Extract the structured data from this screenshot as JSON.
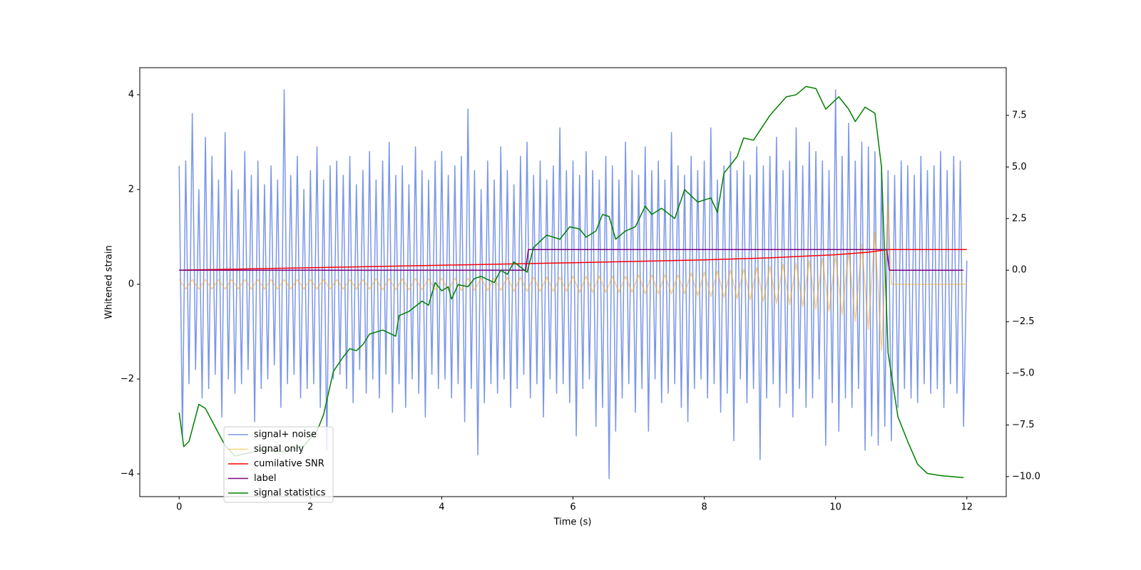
{
  "chart_data": {
    "type": "line",
    "xlabel": "Time (s)",
    "ylabel": "Whitened strain",
    "xlim": [
      -0.6,
      12.6
    ],
    "xticks": [
      0,
      2,
      4,
      6,
      8,
      10,
      12
    ],
    "ylim": [
      -4.48,
      4.57
    ],
    "yticks": [
      {
        "value": -4,
        "label": "−4"
      },
      {
        "value": -2,
        "label": "−2"
      },
      0,
      2,
      4
    ],
    "y2lim": [
      -10.97,
      9.81
    ],
    "y2ticks": [
      {
        "value": -10,
        "label": "−10.0"
      },
      {
        "value": -7.5,
        "label": "−7.5"
      },
      {
        "value": -5,
        "label": "−5.0"
      },
      {
        "value": -2.5,
        "label": "−2.5"
      },
      {
        "value": 0,
        "label": "0.0"
      },
      {
        "value": 2.5,
        "label": "2.5"
      },
      {
        "value": 5,
        "label": "5.0"
      },
      {
        "value": 7.5,
        "label": "7.5"
      }
    ],
    "legend": "lower left",
    "series": [
      {
        "name": "signal+ noise",
        "color": "#4169e1",
        "alpha": 0.7,
        "x": [
          0,
          0.05,
          0.1,
          0.15,
          0.2,
          0.25,
          0.3,
          0.35,
          0.4,
          0.45,
          0.5,
          0.55,
          0.6,
          0.65,
          0.7,
          0.75,
          0.8,
          0.85,
          0.9,
          0.95,
          1,
          1.05,
          1.1,
          1.15,
          1.2,
          1.25,
          1.3,
          1.35,
          1.4,
          1.45,
          1.5,
          1.55,
          1.6,
          1.65,
          1.7,
          1.75,
          1.8,
          1.85,
          1.9,
          1.95,
          2,
          2.05,
          2.1,
          2.15,
          2.2,
          2.25,
          2.3,
          2.35,
          2.4,
          2.45,
          2.5,
          2.55,
          2.6,
          2.65,
          2.7,
          2.75,
          2.8,
          2.85,
          2.9,
          2.95,
          3,
          3.05,
          3.1,
          3.15,
          3.2,
          3.25,
          3.3,
          3.35,
          3.4,
          3.45,
          3.5,
          3.55,
          3.6,
          3.65,
          3.7,
          3.75,
          3.8,
          3.85,
          3.9,
          3.95,
          4,
          4.05,
          4.1,
          4.15,
          4.2,
          4.25,
          4.3,
          4.35,
          4.4,
          4.45,
          4.5,
          4.55,
          4.6,
          4.65,
          4.7,
          4.75,
          4.8,
          4.85,
          4.9,
          4.95,
          5,
          5.05,
          5.1,
          5.15,
          5.2,
          5.25,
          5.3,
          5.35,
          5.4,
          5.45,
          5.5,
          5.55,
          5.6,
          5.65,
          5.7,
          5.75,
          5.8,
          5.85,
          5.9,
          5.95,
          6,
          6.05,
          6.1,
          6.15,
          6.2,
          6.25,
          6.3,
          6.35,
          6.4,
          6.45,
          6.5,
          6.55,
          6.6,
          6.65,
          6.7,
          6.75,
          6.8,
          6.85,
          6.9,
          6.95,
          7,
          7.05,
          7.1,
          7.15,
          7.2,
          7.25,
          7.3,
          7.35,
          7.4,
          7.45,
          7.5,
          7.55,
          7.6,
          7.65,
          7.7,
          7.75,
          7.8,
          7.85,
          7.9,
          7.95,
          8,
          8.05,
          8.1,
          8.15,
          8.2,
          8.25,
          8.3,
          8.35,
          8.4,
          8.45,
          8.5,
          8.55,
          8.6,
          8.65,
          8.7,
          8.75,
          8.8,
          8.85,
          8.9,
          8.95,
          9,
          9.05,
          9.1,
          9.15,
          9.2,
          9.25,
          9.3,
          9.35,
          9.4,
          9.45,
          9.5,
          9.55,
          9.6,
          9.65,
          9.7,
          9.75,
          9.8,
          9.85,
          9.9,
          9.95,
          10,
          10.05,
          10.1,
          10.15,
          10.2,
          10.25,
          10.3,
          10.35,
          10.4,
          10.45,
          10.5,
          10.55,
          10.6,
          10.65,
          10.7,
          10.75,
          10.8,
          10.85,
          10.9,
          10.95,
          11,
          11.05,
          11.1,
          11.15,
          11.2,
          11.25,
          11.3,
          11.35,
          11.4,
          11.45,
          11.5,
          11.55,
          11.6,
          11.65,
          11.7,
          11.75,
          11.8,
          11.85,
          11.9,
          11.95,
          12
        ],
        "values": [
          2.5,
          -3.2,
          2.6,
          -2.1,
          3.6,
          -1.8,
          2.0,
          -2.4,
          3.1,
          -2.2,
          2.7,
          -1.9,
          2.2,
          -2.8,
          3.2,
          -2.0,
          2.4,
          -2.3,
          2.0,
          -2.1,
          2.8,
          -1.8,
          2.3,
          -2.9,
          2.6,
          -2.2,
          2.1,
          -2.0,
          2.5,
          -1.7,
          2.2,
          -2.6,
          4.1,
          -2.1,
          2.3,
          -1.9,
          2.7,
          -2.4,
          2.0,
          -2.2,
          2.4,
          -2.1,
          2.9,
          -2.6,
          2.2,
          -3.5,
          2.5,
          -2.0,
          2.6,
          -1.9,
          2.3,
          -2.2,
          2.7,
          -2.5,
          2.1,
          -1.8,
          2.4,
          -2.3,
          2.8,
          -2.0,
          2.2,
          -2.4,
          2.6,
          -1.9,
          3.0,
          -2.7,
          2.3,
          -2.1,
          2.5,
          -2.6,
          2.1,
          -2.0,
          2.9,
          -2.3,
          2.4,
          -2.8,
          2.2,
          -1.9,
          2.6,
          -2.2,
          2.8,
          -2.0,
          2.3,
          -2.4,
          2.5,
          -2.1,
          2.7,
          -2.9,
          3.7,
          -2.2,
          2.4,
          -3.6,
          2.0,
          -2.5,
          2.6,
          -2.1,
          2.2,
          -2.3,
          2.9,
          -2.0,
          2.4,
          -2.6,
          2.1,
          -2.2,
          2.7,
          -1.9,
          3.0,
          -2.4,
          2.3,
          -2.1,
          2.6,
          -2.8,
          2.2,
          -2.0,
          2.5,
          -2.3,
          3.3,
          -2.1,
          2.4,
          -2.5,
          2.6,
          -3.2,
          2.3,
          -2.2,
          2.8,
          -2.0,
          2.4,
          -3.0,
          2.2,
          -2.6,
          2.7,
          -4.1,
          2.5,
          -3.1,
          2.2,
          -2.4,
          3.0,
          -2.1,
          2.4,
          -2.7,
          2.3,
          -2.2,
          2.9,
          -3.1,
          2.4,
          -2.0,
          2.6,
          -2.5,
          2.2,
          -2.3,
          3.2,
          -2.1,
          2.5,
          -2.6,
          2.3,
          -2.9,
          2.7,
          -2.2,
          2.4,
          -2.0,
          2.6,
          -2.4,
          3.3,
          -2.1,
          2.2,
          -2.7,
          2.5,
          -2.3,
          2.8,
          -3.3,
          2.4,
          -2.0,
          2.6,
          -2.5,
          2.3,
          -2.2,
          2.9,
          -3.7,
          2.5,
          -2.4,
          2.7,
          -2.1,
          3.1,
          -2.6,
          2.4,
          -2.3,
          2.6,
          -2.8,
          3.3,
          -2.2,
          2.5,
          -2.6,
          3.0,
          -2.4,
          2.8,
          -2.0,
          2.6,
          -3.4,
          2.4,
          -2.5,
          4.1,
          -3.1,
          2.7,
          -2.4,
          3.4,
          -2.6,
          2.6,
          -2.2,
          3.0,
          -3.5,
          2.9,
          -3.2,
          2.8,
          -3.4,
          2.5,
          -3.0,
          2.4,
          -3.3,
          2.3,
          -2.6,
          2.6,
          -2.2,
          2.5,
          -2.4,
          2.3,
          -2.5,
          2.7,
          -2.1,
          2.4,
          -2.3,
          2.5,
          -2.2,
          2.8,
          -2.6,
          2.4,
          -2.1,
          2.7,
          -2.3,
          2.6,
          -3.0,
          0.5
        ]
      },
      {
        "name": "signal only",
        "color": "#ffa500",
        "alpha": 0.5,
        "x": [
          0,
          0.1,
          0.2,
          0.3,
          0.4,
          0.5,
          0.6,
          0.7,
          0.8,
          0.9,
          1,
          1.1,
          1.2,
          1.3,
          1.4,
          1.5,
          1.6,
          1.7,
          1.8,
          1.9,
          2,
          2.1,
          2.2,
          2.3,
          2.4,
          2.5,
          2.6,
          2.7,
          2.8,
          2.9,
          3,
          3.1,
          3.2,
          3.3,
          3.4,
          3.5,
          3.6,
          3.7,
          3.8,
          3.9,
          4,
          4.1,
          4.2,
          4.3,
          4.4,
          4.5,
          4.6,
          4.7,
          4.8,
          4.9,
          5,
          5.1,
          5.2,
          5.3,
          5.4,
          5.5,
          5.6,
          5.7,
          5.8,
          5.9,
          6,
          6.1,
          6.2,
          6.3,
          6.4,
          6.5,
          6.6,
          6.7,
          6.8,
          6.9,
          7,
          7.1,
          7.2,
          7.3,
          7.4,
          7.5,
          7.6,
          7.7,
          7.8,
          7.9,
          8,
          8.1,
          8.2,
          8.3,
          8.4,
          8.5,
          8.6,
          8.7,
          8.8,
          8.9,
          9,
          9.1,
          9.2,
          9.3,
          9.4,
          9.5,
          9.6,
          9.7,
          9.8,
          9.9,
          10,
          10.1,
          10.2,
          10.3,
          10.4,
          10.5,
          10.6,
          10.7,
          10.8,
          10.85,
          12
        ],
        "values": [
          0.1,
          -0.1,
          0.1,
          -0.1,
          0.1,
          -0.1,
          0.1,
          -0.1,
          0.1,
          -0.1,
          0.1,
          -0.1,
          0.1,
          -0.1,
          0.1,
          -0.1,
          0.1,
          -0.1,
          0.1,
          -0.1,
          0.1,
          -0.1,
          0.1,
          -0.1,
          0.1,
          -0.1,
          0.1,
          -0.1,
          0.1,
          -0.1,
          0.12,
          -0.12,
          0.12,
          -0.12,
          0.12,
          -0.12,
          0.12,
          -0.12,
          0.12,
          -0.12,
          0.13,
          -0.13,
          0.13,
          -0.13,
          0.13,
          -0.13,
          0.13,
          -0.13,
          0.13,
          -0.13,
          0.15,
          -0.15,
          0.15,
          -0.15,
          0.15,
          -0.15,
          0.15,
          -0.15,
          0.15,
          -0.15,
          0.17,
          -0.17,
          0.17,
          -0.17,
          0.17,
          -0.17,
          0.17,
          -0.17,
          0.17,
          -0.17,
          0.2,
          -0.2,
          0.2,
          -0.2,
          0.2,
          -0.2,
          0.2,
          -0.2,
          0.24,
          -0.24,
          0.26,
          -0.26,
          0.28,
          -0.28,
          0.3,
          -0.3,
          0.32,
          -0.33,
          0.35,
          -0.36,
          0.38,
          -0.4,
          0.42,
          -0.43,
          0.45,
          -0.47,
          0.5,
          -0.52,
          0.55,
          -0.57,
          0.6,
          -0.65,
          0.7,
          -0.78,
          0.85,
          -0.95,
          1.1,
          -1.4,
          1.7,
          0,
          0
        ]
      },
      {
        "name": "cumilative SNR",
        "color": "#ff0000",
        "axis": "y2",
        "x": [
          0,
          2,
          4,
          6,
          8,
          9,
          10,
          10.5,
          10.8,
          12
        ],
        "values": [
          0,
          0.12,
          0.24,
          0.36,
          0.5,
          0.6,
          0.75,
          0.87,
          1.0,
          1.0
        ]
      },
      {
        "name": "label",
        "color": "#800080",
        "axis": "y2",
        "x": [
          0,
          5.28,
          5.32,
          10.78,
          10.82,
          11.95
        ],
        "values": [
          0,
          0,
          1,
          1,
          0,
          0
        ]
      },
      {
        "name": "signal statistics",
        "color": "#008000",
        "axis": "y2",
        "x": [
          0,
          0.07,
          0.15,
          0.3,
          0.4,
          0.55,
          0.7,
          0.85,
          1.0,
          1.3,
          1.6,
          1.9,
          2.1,
          2.2,
          2.35,
          2.5,
          2.6,
          2.7,
          2.8,
          2.9,
          3.1,
          3.3,
          3.35,
          3.5,
          3.7,
          3.8,
          3.9,
          4.0,
          4.1,
          4.15,
          4.25,
          4.4,
          4.5,
          4.6,
          4.8,
          4.9,
          5.0,
          5.1,
          5.3,
          5.4,
          5.6,
          5.8,
          5.95,
          6.1,
          6.2,
          6.35,
          6.45,
          6.55,
          6.65,
          6.8,
          6.95,
          7.1,
          7.2,
          7.35,
          7.55,
          7.7,
          7.9,
          8.0,
          8.1,
          8.2,
          8.3,
          8.5,
          8.6,
          8.75,
          9.0,
          9.25,
          9.4,
          9.55,
          9.7,
          9.85,
          10.05,
          10.2,
          10.3,
          10.45,
          10.6,
          10.7,
          10.8,
          10.95,
          11.1,
          11.25,
          11.4,
          11.6,
          11.95
        ],
        "values": [
          -6.9,
          -8.55,
          -8.3,
          -6.5,
          -6.7,
          -7.6,
          -8.5,
          -9.0,
          -8.9,
          -8.7,
          -8.8,
          -8.5,
          -7.8,
          -7.0,
          -4.9,
          -4.2,
          -3.8,
          -3.9,
          -3.6,
          -3.1,
          -2.9,
          -3.2,
          -2.2,
          -2.0,
          -1.5,
          -1.7,
          -0.6,
          -1.0,
          -0.8,
          -1.4,
          -0.7,
          -0.8,
          -0.4,
          -0.3,
          -0.6,
          0.0,
          -0.2,
          0.4,
          -0.1,
          1.1,
          1.7,
          1.5,
          2.1,
          2.0,
          1.6,
          1.9,
          2.7,
          2.6,
          1.5,
          1.9,
          2.1,
          3.1,
          2.7,
          3.0,
          2.5,
          3.9,
          3.3,
          3.4,
          3.5,
          2.8,
          4.7,
          5.5,
          6.4,
          6.3,
          7.5,
          8.4,
          8.5,
          8.9,
          8.8,
          7.8,
          8.4,
          7.8,
          7.2,
          7.9,
          7.6,
          5.0,
          -4.0,
          -7.1,
          -8.3,
          -9.4,
          -9.85,
          -9.95,
          -10.05
        ]
      }
    ]
  }
}
